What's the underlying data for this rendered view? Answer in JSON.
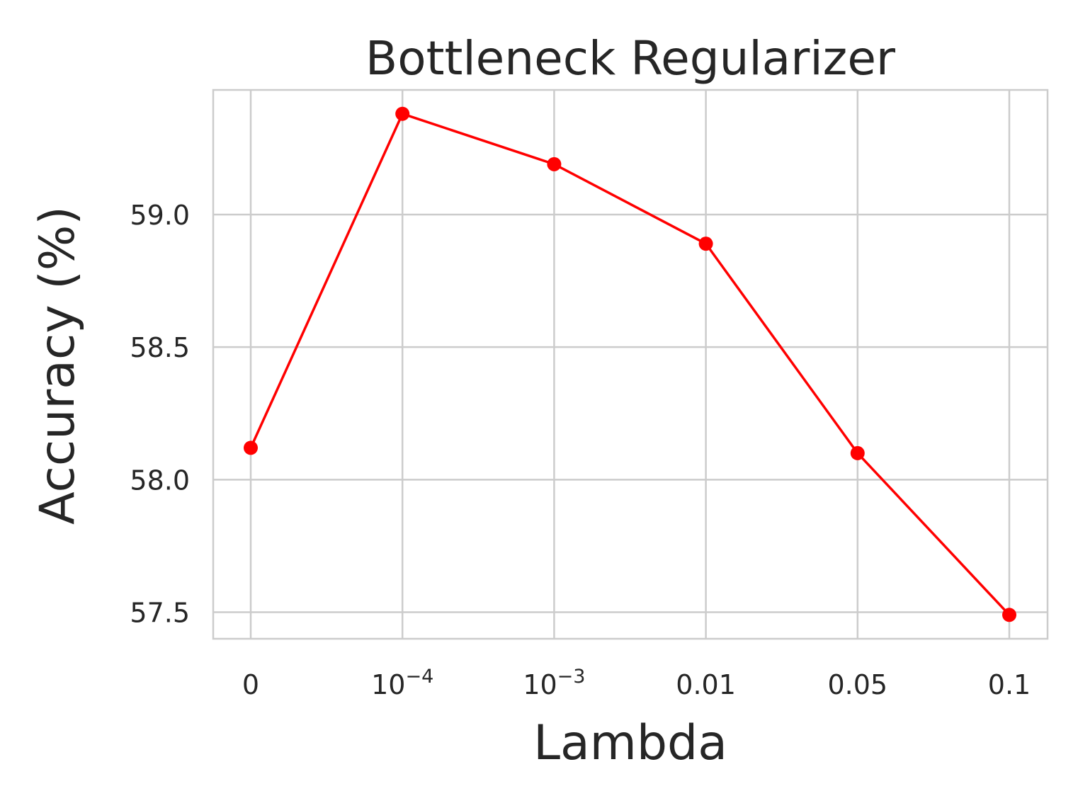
{
  "chart_data": {
    "type": "line",
    "title": "Bottleneck Regularizer",
    "xlabel": "Lambda",
    "ylabel": "Accuracy (%)",
    "categories": [
      {
        "base": "0",
        "exp": ""
      },
      {
        "base": "10",
        "exp": "−4"
      },
      {
        "base": "10",
        "exp": "−3"
      },
      {
        "base": "0.01",
        "exp": ""
      },
      {
        "base": "0.05",
        "exp": ""
      },
      {
        "base": "0.1",
        "exp": ""
      }
    ],
    "series": [
      {
        "values": [
          58.12,
          59.38,
          59.19,
          58.89,
          58.1,
          57.49
        ],
        "color": "#ff0000"
      }
    ],
    "yticks": [
      "57.5",
      "58.0",
      "58.5",
      "59.0"
    ],
    "ytick_values": [
      57.5,
      58.0,
      58.5,
      59.0
    ],
    "ylim": [
      57.4,
      59.47
    ],
    "grid": true
  }
}
